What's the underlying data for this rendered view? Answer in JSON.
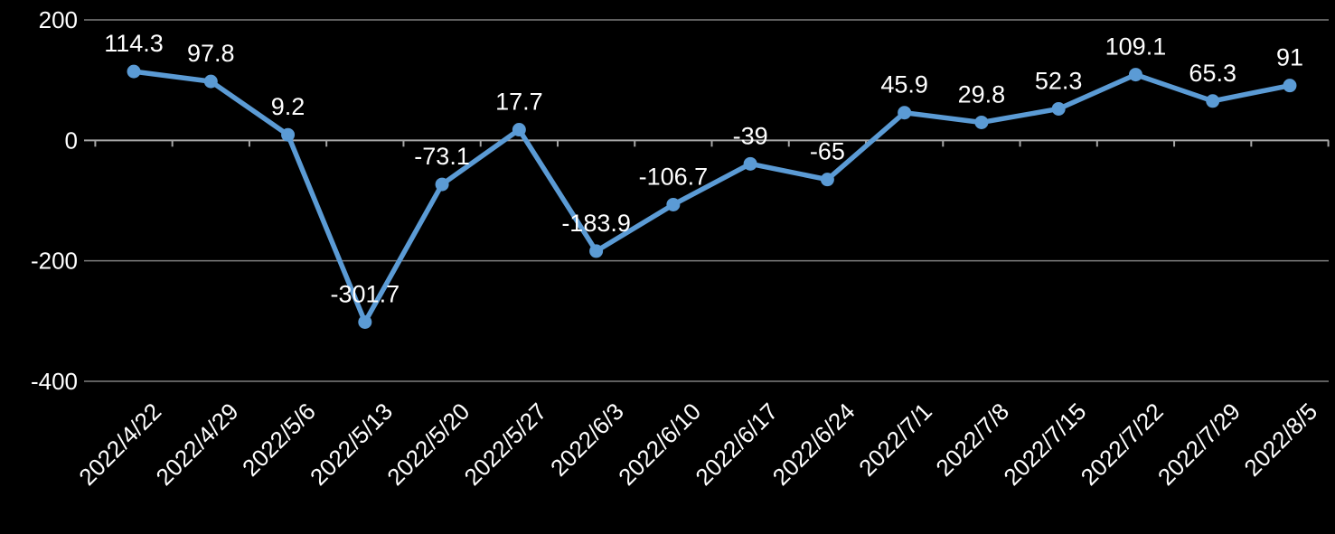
{
  "chart_data": {
    "type": "line",
    "categories": [
      "2022/4/22",
      "2022/4/29",
      "2022/5/6",
      "2022/5/13",
      "2022/5/20",
      "2022/5/27",
      "2022/6/3",
      "2022/6/10",
      "2022/6/17",
      "2022/6/24",
      "2022/7/1",
      "2022/7/8",
      "2022/7/15",
      "2022/7/22",
      "2022/7/29",
      "2022/8/5"
    ],
    "values": [
      114.3,
      97.8,
      9.2,
      -301.7,
      -73.1,
      17.7,
      -183.9,
      -106.7,
      -39,
      -65,
      45.9,
      29.8,
      52.3,
      109.1,
      65.3,
      91
    ],
    "data_labels": [
      "114.3",
      "97.8",
      "9.2",
      "-301.7",
      "-73.1",
      "17.7",
      "-183.9",
      "-106.7",
      "-39",
      "-65",
      "45.9",
      "29.8",
      "52.3",
      "109.1",
      "65.3",
      "91"
    ],
    "y_ticks": [
      200,
      0,
      -200,
      -400
    ],
    "y_tick_labels": [
      "200",
      "0",
      "-200",
      "-400"
    ],
    "ylim": [
      -400,
      200
    ],
    "title": "",
    "xlabel": "",
    "ylabel": "",
    "grid": true,
    "legend_position": "none",
    "colors": {
      "series": "#5B9BD5",
      "background": "#000000",
      "text": "#FFFFFF",
      "gridline": "#7F7F7F",
      "zero_axis": "#A6A6A6"
    }
  }
}
